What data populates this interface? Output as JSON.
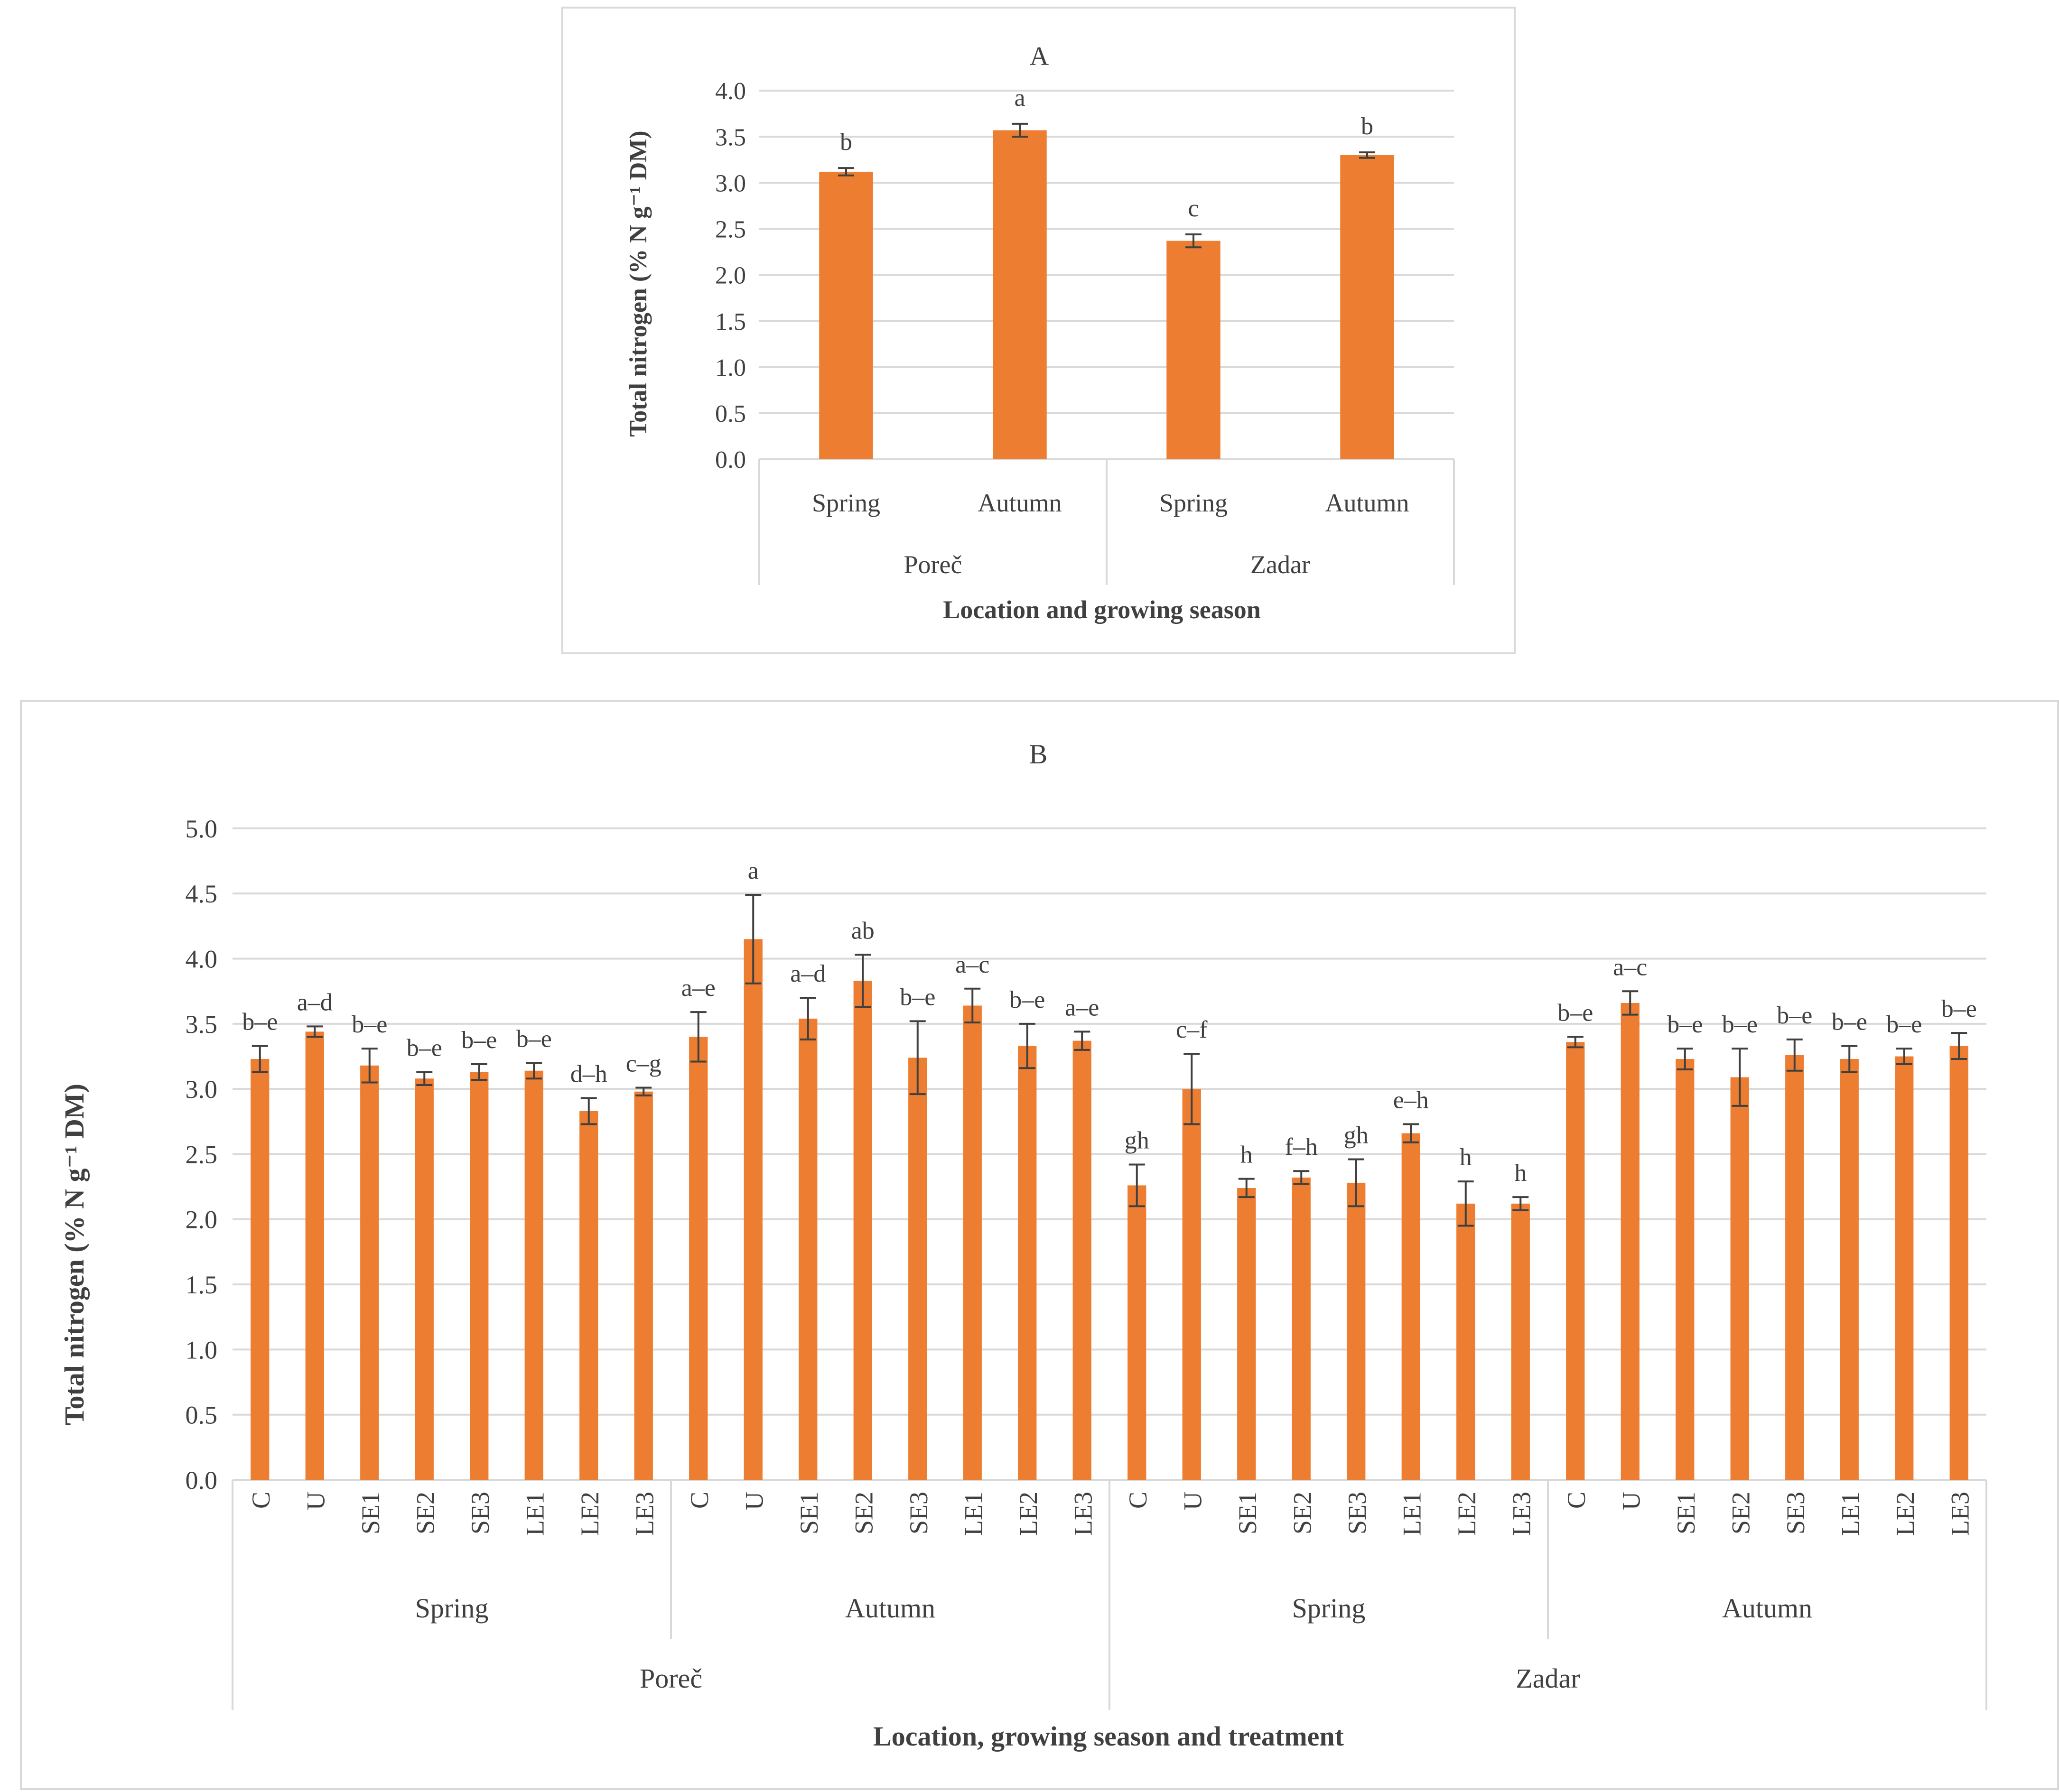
{
  "colors": {
    "bar": "#ED7D31",
    "grid": "#d9d9d9",
    "text": "#404040",
    "error": "#404040"
  },
  "chart_data": [
    {
      "type": "bar",
      "title": "A",
      "ylabel": "Total nitrogen (% N g⁻¹ DM)",
      "xlabel": "Location and growing season",
      "ylim": [
        0,
        4
      ],
      "ytick_step": 0.5,
      "ytick_labels": [
        "0.0",
        "0.5",
        "1.0",
        "1.5",
        "2.0",
        "2.5",
        "3.0",
        "3.5",
        "4.0"
      ],
      "groups": [
        "Poreč",
        "Zadar"
      ],
      "categories": [
        "Spring",
        "Autumn",
        "Spring",
        "Autumn"
      ],
      "category_group": [
        "Poreč",
        "Poreč",
        "Zadar",
        "Zadar"
      ],
      "values": [
        3.12,
        3.57,
        2.37,
        3.3
      ],
      "errors": [
        0.04,
        0.07,
        0.07,
        0.03
      ],
      "letters": [
        "b",
        "a",
        "c",
        "b"
      ]
    },
    {
      "type": "bar",
      "title": "B",
      "ylabel": "Total nitrogen (% N g⁻¹  DM)",
      "xlabel": "Location, growing season and treatment",
      "ylim": [
        0,
        5
      ],
      "ytick_step": 0.5,
      "ytick_labels": [
        "0.0",
        "0.5",
        "1.0",
        "1.5",
        "2.0",
        "2.5",
        "3.0",
        "3.5",
        "4.0",
        "4.5",
        "5.0"
      ],
      "groups": [
        "Poreč",
        "Zadar"
      ],
      "seasons": [
        "Spring",
        "Autumn",
        "Spring",
        "Autumn"
      ],
      "categories": [
        "C",
        "U",
        "SE1",
        "SE2",
        "SE3",
        "LE1",
        "LE2",
        "LE3",
        "C",
        "U",
        "SE1",
        "SE2",
        "SE3",
        "LE1",
        "LE2",
        "LE3",
        "C",
        "U",
        "SE1",
        "SE2",
        "SE3",
        "LE1",
        "LE2",
        "LE3",
        "C",
        "U",
        "SE1",
        "SE2",
        "SE3",
        "LE1",
        "LE2",
        "LE3"
      ],
      "values": [
        3.23,
        3.44,
        3.18,
        3.08,
        3.13,
        3.14,
        2.83,
        2.98,
        3.4,
        4.15,
        3.54,
        3.83,
        3.24,
        3.64,
        3.33,
        3.37,
        2.26,
        3.0,
        2.24,
        2.32,
        2.28,
        2.66,
        2.12,
        2.12,
        3.36,
        3.66,
        3.23,
        3.09,
        3.26,
        3.23,
        3.25,
        3.33
      ],
      "errors": [
        0.1,
        0.04,
        0.13,
        0.05,
        0.06,
        0.06,
        0.1,
        0.03,
        0.19,
        0.34,
        0.16,
        0.2,
        0.28,
        0.13,
        0.17,
        0.07,
        0.16,
        0.27,
        0.07,
        0.05,
        0.18,
        0.07,
        0.17,
        0.05,
        0.04,
        0.09,
        0.08,
        0.22,
        0.12,
        0.1,
        0.06,
        0.1
      ],
      "letters": [
        "b–e",
        "a–d",
        "b–e",
        "b–e",
        "b–e",
        "b–e",
        "d–h",
        "c–g",
        "a–e",
        "a",
        "a–d",
        "ab",
        "b–e",
        "a–c",
        "b–e",
        "a–e",
        "gh",
        "c–f",
        "h",
        "f–h",
        "gh",
        "e–h",
        "h",
        "h",
        "b–e",
        "a–c",
        "b–e",
        "b–e",
        "b–e",
        "b–e",
        "b–e",
        "b–e"
      ]
    }
  ]
}
